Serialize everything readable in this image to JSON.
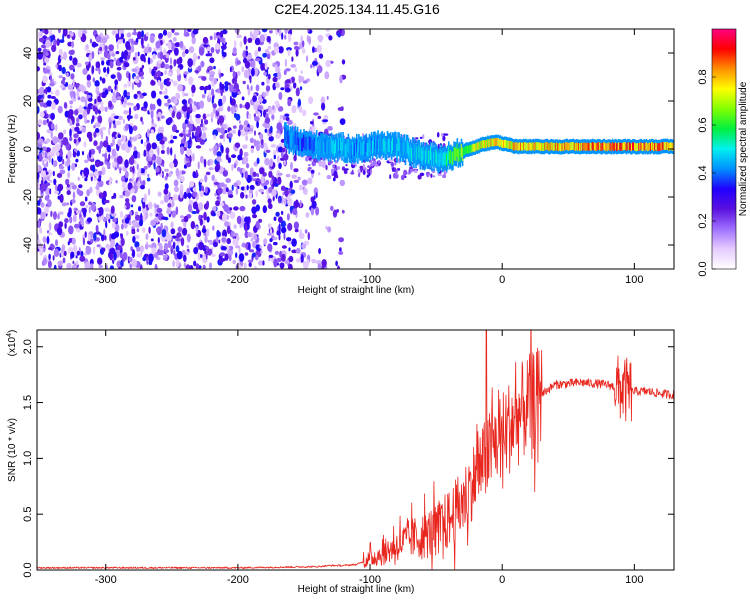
{
  "title": "C2E4.2025.134.11.45.G16",
  "spectrogram": {
    "xlabel": "Height of straight line (km)",
    "ylabel": "Frequency (Hz)",
    "xlim": [
      -352,
      130
    ],
    "ylim": [
      -50,
      50
    ],
    "xticks": [
      -300,
      -200,
      -100,
      0,
      100
    ],
    "yticks": [
      -40,
      -20,
      0,
      20,
      40
    ],
    "colorbar": {
      "label": "Normalized spectral amplitude",
      "range": [
        0,
        1
      ],
      "ticks": [
        "0.0",
        "0.2",
        "0.4",
        "0.6",
        "0.8"
      ],
      "colors": [
        "#ffffff",
        "#e6ccff",
        "#a070ff",
        "#5a10e0",
        "#2000ff",
        "#0090ff",
        "#00f0f0",
        "#00f040",
        "#80ff00",
        "#ffff00",
        "#ff9000",
        "#ff0000",
        "#ff0080"
      ]
    },
    "ridge": {
      "height_km": [
        -165,
        -150,
        -130,
        -110,
        -90,
        -75,
        -60,
        -45,
        -35,
        -25,
        -15,
        -5,
        10,
        40,
        80,
        130
      ],
      "freq_hz": [
        5,
        2,
        1,
        0,
        2,
        0,
        -3,
        -4,
        -2,
        0,
        2,
        3,
        1,
        1,
        1,
        1
      ],
      "amplitude": [
        0.45,
        0.4,
        0.5,
        0.45,
        0.5,
        0.5,
        0.5,
        0.55,
        0.7,
        0.7,
        0.8,
        0.8,
        0.85,
        0.85,
        0.9,
        0.9
      ]
    }
  },
  "snr": {
    "xlabel": "Height of straight line (km)",
    "ylabel": "SNR (10 * v/v)",
    "multiplier": "(x10",
    "exponent": "4",
    "multiplier_close": ")",
    "xlim": [
      -352,
      130
    ],
    "ylim": [
      0,
      2.15
    ],
    "xticks": [
      -300,
      -200,
      -100,
      0,
      100
    ],
    "yticks": [
      "0.0",
      "0.5",
      "1.0",
      "1.5",
      "2.0"
    ],
    "line_color": "#e8261e",
    "chart_data": {
      "type": "line",
      "x": [
        -352,
        -200,
        -140,
        -130,
        -120,
        -110,
        -100,
        -90,
        -80,
        -70,
        -60,
        -50,
        -40,
        -30,
        -20,
        -12,
        -5,
        0,
        5,
        10,
        20,
        30,
        40,
        60,
        80,
        90,
        95,
        100,
        110,
        120,
        130
      ],
      "y": [
        0.02,
        0.02,
        0.03,
        0.04,
        0.04,
        0.05,
        0.1,
        0.15,
        0.22,
        0.28,
        0.3,
        0.36,
        0.45,
        0.6,
        0.85,
        1.0,
        1.15,
        1.2,
        1.28,
        1.35,
        1.48,
        1.58,
        1.66,
        1.68,
        1.66,
        1.62,
        1.6,
        1.6,
        1.6,
        1.58,
        1.57
      ]
    }
  }
}
